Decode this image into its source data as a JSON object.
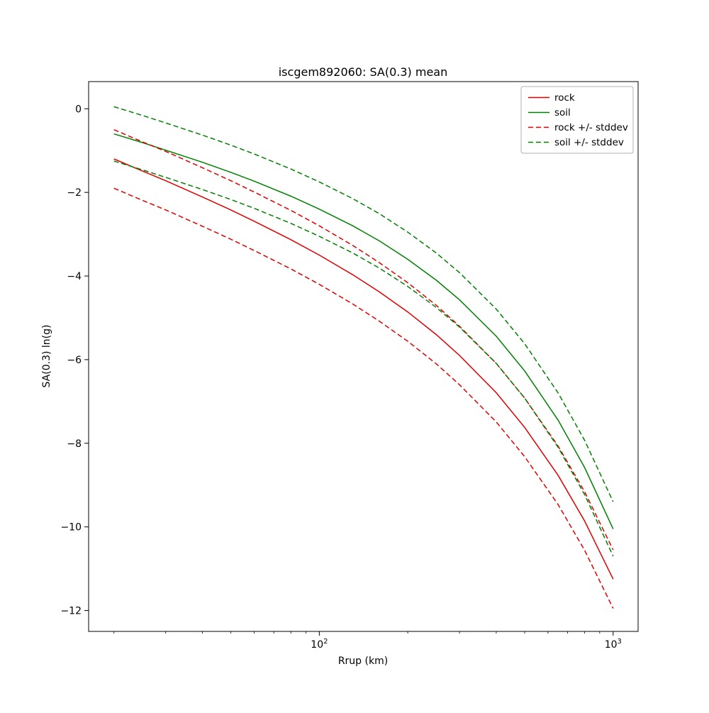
{
  "chart_data": {
    "type": "line",
    "title": "iscgem892060: SA(0.3) mean",
    "xlabel": "Rrup (km)",
    "ylabel": "SA(0.3) ln(g)",
    "xscale": "log",
    "xlim": [
      16.4,
      1216
    ],
    "ylim": [
      -12.5,
      0.65
    ],
    "grid": false,
    "yticks": [
      {
        "value": 0,
        "label": "0"
      },
      {
        "value": -2,
        "label": "−2"
      },
      {
        "value": -4,
        "label": "−4"
      },
      {
        "value": -6,
        "label": "−6"
      },
      {
        "value": -8,
        "label": "−8"
      },
      {
        "value": -10,
        "label": "−10"
      },
      {
        "value": -12,
        "label": "−12"
      }
    ],
    "xticks": [
      {
        "value": 100,
        "mantissa": "10",
        "exponent": "2"
      },
      {
        "value": 1000,
        "mantissa": "10",
        "exponent": "3"
      }
    ],
    "legend_position": "upper right",
    "x": [
      20,
      25,
      30,
      40,
      50,
      60,
      80,
      100,
      130,
      160,
      200,
      250,
      300,
      400,
      500,
      650,
      800,
      1000
    ],
    "series": [
      {
        "name": "rock",
        "color": "#e00000",
        "style": "solid",
        "values": [
          -1.2,
          -1.49,
          -1.72,
          -2.11,
          -2.42,
          -2.69,
          -3.13,
          -3.5,
          -3.97,
          -4.38,
          -4.86,
          -5.4,
          -5.9,
          -6.79,
          -7.62,
          -8.77,
          -9.86,
          -11.25
        ]
      },
      {
        "name": "soil",
        "color": "#008000",
        "style": "solid",
        "values": [
          -0.6,
          -0.81,
          -0.99,
          -1.28,
          -1.52,
          -1.73,
          -2.09,
          -2.4,
          -2.8,
          -3.16,
          -3.6,
          -4.1,
          -4.57,
          -5.44,
          -6.27,
          -7.45,
          -8.58,
          -10.05
        ]
      },
      {
        "name": "rock +/- stddev",
        "color": "#e00000",
        "style": "dashed",
        "values_upper": [
          -0.5,
          -0.79,
          -1.02,
          -1.41,
          -1.72,
          -1.99,
          -2.43,
          -2.8,
          -3.27,
          -3.68,
          -4.16,
          -4.7,
          -5.2,
          -6.09,
          -6.92,
          -8.07,
          -9.16,
          -10.55
        ],
        "values_lower": [
          -1.9,
          -2.19,
          -2.42,
          -2.81,
          -3.12,
          -3.39,
          -3.83,
          -4.2,
          -4.67,
          -5.08,
          -5.56,
          -6.1,
          -6.6,
          -7.49,
          -8.32,
          -9.47,
          -10.56,
          -11.95
        ]
      },
      {
        "name": "soil +/- stddev",
        "color": "#008000",
        "style": "dashed",
        "values_upper": [
          0.05,
          -0.16,
          -0.34,
          -0.63,
          -0.87,
          -1.08,
          -1.44,
          -1.75,
          -2.15,
          -2.51,
          -2.95,
          -3.45,
          -3.92,
          -4.79,
          -5.62,
          -6.8,
          -7.93,
          -9.4
        ],
        "values_lower": [
          -1.25,
          -1.46,
          -1.64,
          -1.93,
          -2.17,
          -2.38,
          -2.74,
          -3.05,
          -3.45,
          -3.81,
          -4.25,
          -4.75,
          -5.22,
          -6.09,
          -6.92,
          -8.1,
          -9.23,
          -10.7
        ]
      }
    ]
  }
}
